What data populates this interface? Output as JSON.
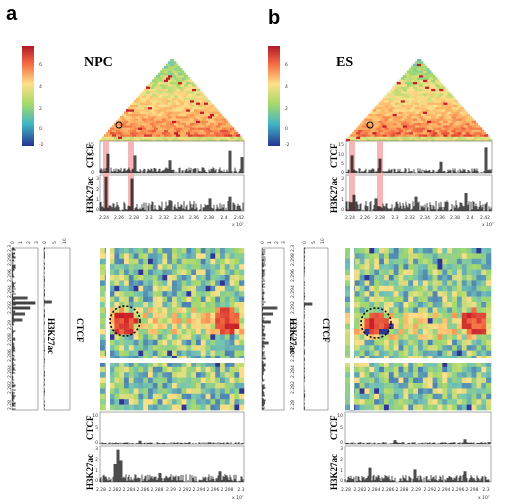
{
  "figure": {
    "panels": [
      {
        "letter": "a",
        "condition": "NPC",
        "track_labels": {
          "ctcf": "CTCF",
          "h3k27ac": "H3K27ac"
        },
        "colorbar_ticks": [
          "6",
          "4",
          "2",
          "0",
          "-2"
        ],
        "top_ctcf_ticks": [
          "15",
          "10",
          "5",
          "0"
        ],
        "top_h3k_ticks": [
          "3",
          "2",
          "1",
          "0"
        ],
        "top_x_ticks": [
          "2.24",
          "2.26",
          "2.28",
          "2.3",
          "2.32",
          "2.34",
          "2.36",
          "2.38",
          "2.4",
          "2.42"
        ],
        "top_x_exp": "x 10⁷",
        "side_ctcf_ticks": [
          "0",
          "5",
          "10"
        ],
        "side_h3k_ticks": [
          "0",
          "1",
          "2",
          "3"
        ],
        "side_y_ticks": [
          "2.28",
          "2.282",
          "2.284",
          "2.286",
          "2.288",
          "2.29",
          "2.292",
          "2.294",
          "2.296",
          "2.298",
          "2.3"
        ],
        "bottom_x_ticks": [
          "2.28",
          "2.282",
          "2.284",
          "2.286",
          "2.288",
          "2.29",
          "2.292",
          "2.294",
          "2.296",
          "2.298",
          "2.3"
        ],
        "bottom_x_exp": "x 10⁷",
        "bottom_ctcf_ticks": [
          "10",
          "5",
          "0"
        ],
        "bottom_h3k_ticks": [
          "3",
          "2",
          "1",
          "0"
        ]
      },
      {
        "letter": "b",
        "condition": "ES",
        "track_labels": {
          "ctcf": "CTCF",
          "h3k27ac": "H3K27ac"
        },
        "colorbar_ticks": [
          "6",
          "4",
          "2",
          "0",
          "-2"
        ],
        "top_ctcf_ticks": [
          "15",
          "10",
          "5",
          "0"
        ],
        "top_h3k_ticks": [
          "3",
          "2",
          "1",
          "0"
        ],
        "top_x_ticks": [
          "2.24",
          "2.26",
          "2.28",
          "2.3",
          "2.32",
          "2.34",
          "2.36",
          "2.38",
          "2.4",
          "2.42"
        ],
        "top_x_exp": "x 10⁷",
        "side_ctcf_ticks": [
          "0",
          "5",
          "10"
        ],
        "side_h3k_ticks": [
          "0",
          "1",
          "2",
          "3"
        ],
        "side_y_ticks": [
          "2.28",
          "2.282",
          "2.284",
          "2.286",
          "2.288",
          "2.29",
          "2.292",
          "2.294",
          "2.296",
          "2.298",
          "2.3"
        ],
        "bottom_x_ticks": [
          "2.28",
          "2.282",
          "2.284",
          "2.286",
          "2.288",
          "2.29",
          "2.292",
          "2.294",
          "2.296",
          "2.298",
          "2.3"
        ],
        "bottom_x_exp": "x 10⁷",
        "bottom_ctcf_ticks": [
          "10",
          "5",
          "0"
        ],
        "bottom_h3k_ticks": [
          "3",
          "2",
          "1",
          "0"
        ]
      }
    ],
    "colors": {
      "heat_low": "#3a4fb8",
      "heat_mid": "#8fe08a",
      "heat_high": "#d7191c",
      "highlight": "#f4b6b6",
      "loop_circle": "#000000",
      "track": "#000000"
    }
  }
}
